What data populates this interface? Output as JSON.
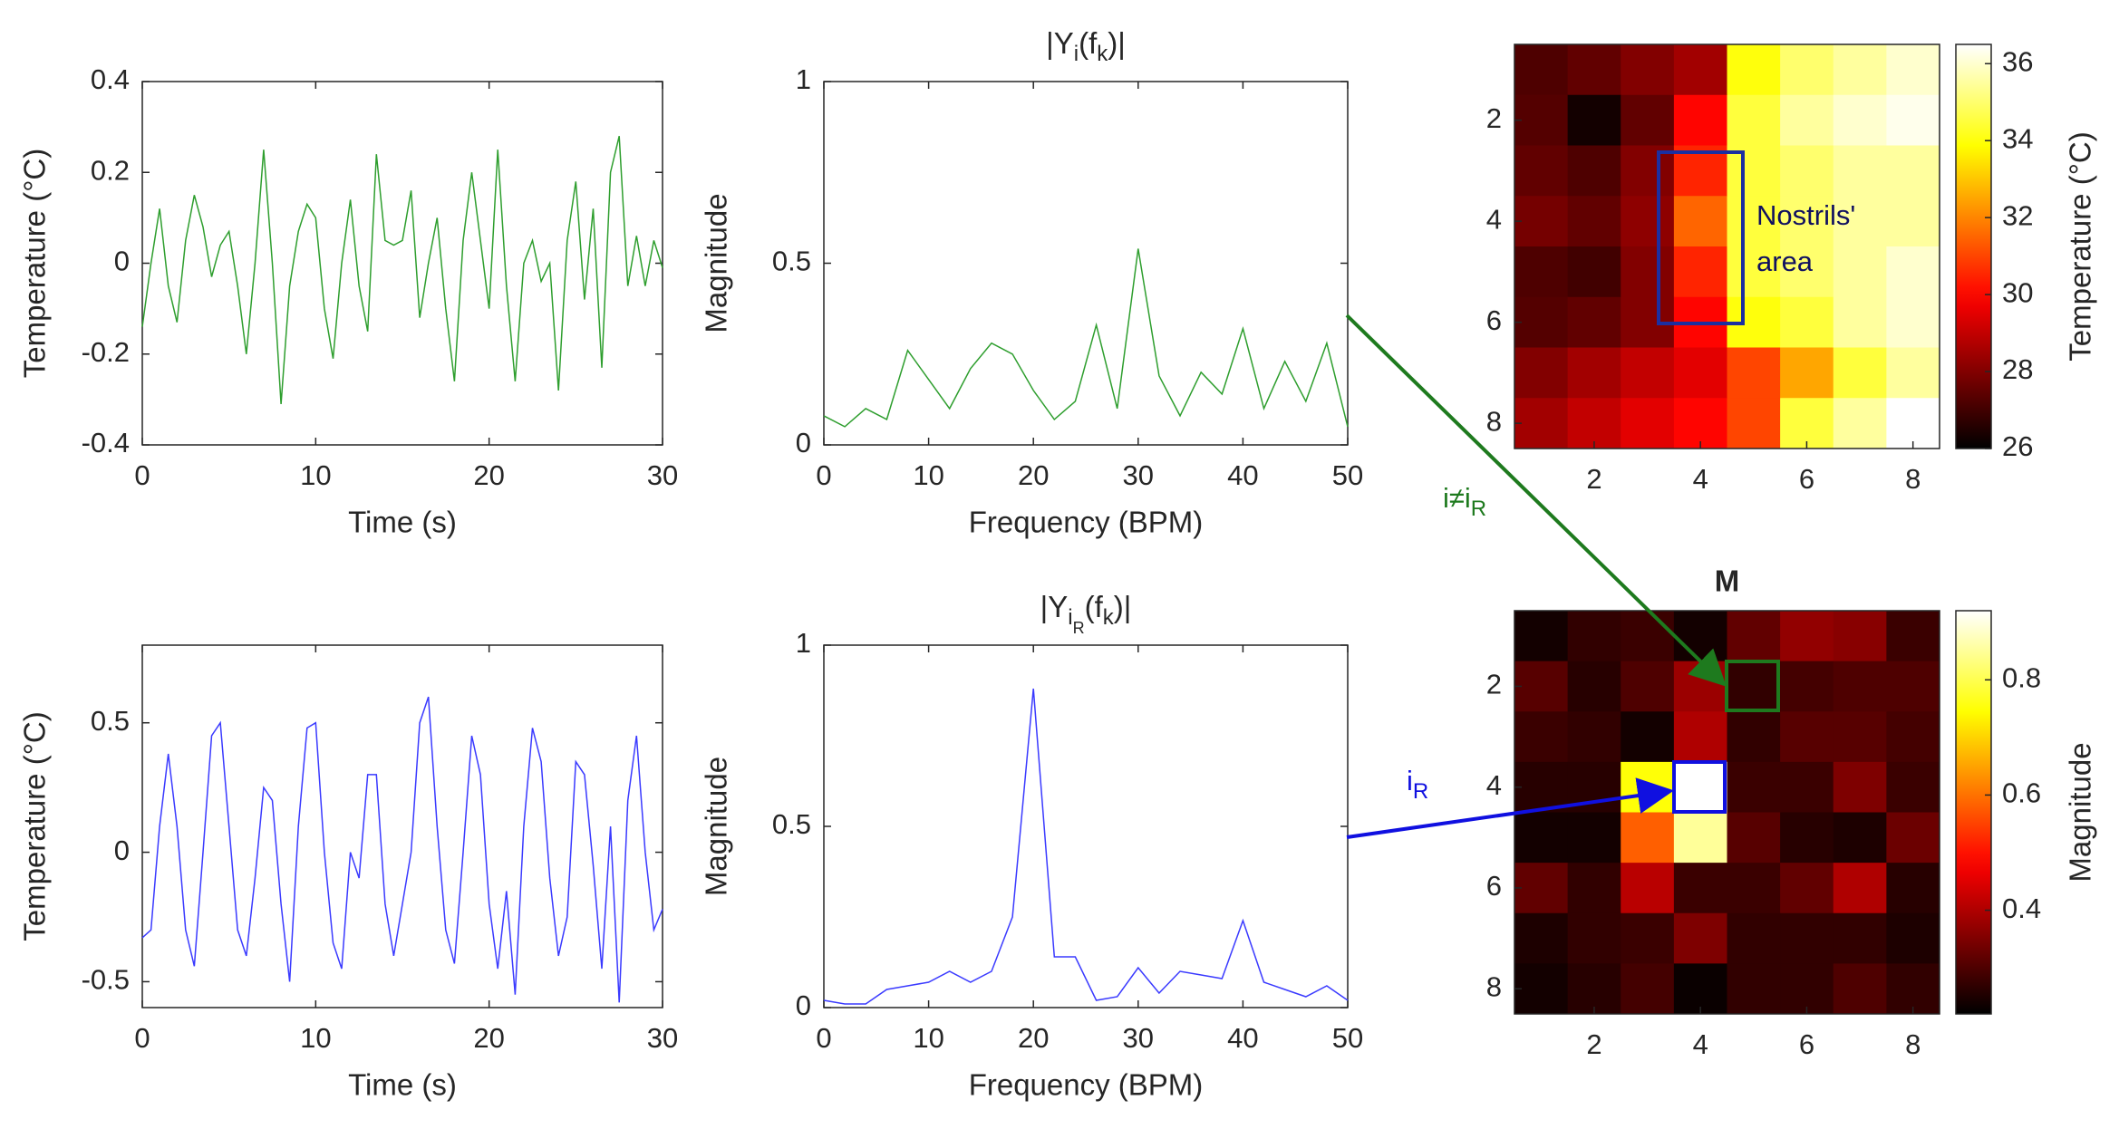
{
  "chart_data": [
    {
      "type": "line",
      "xlabel": "Time (s)",
      "ylabel": "Temperature (°C)",
      "x": [
        0,
        0.5,
        1,
        1.5,
        2,
        2.5,
        3,
        3.5,
        4,
        4.5,
        5,
        5.5,
        6,
        6.5,
        7,
        7.5,
        8,
        8.5,
        9,
        9.5,
        10,
        10.5,
        11,
        11.5,
        12,
        12.5,
        13,
        13.5,
        14,
        14.5,
        15,
        15.5,
        16,
        16.5,
        17,
        17.5,
        18,
        18.5,
        19,
        19.5,
        20,
        20.5,
        21,
        21.5,
        22,
        22.5,
        23,
        23.5,
        24,
        24.5,
        25,
        25.5,
        26,
        26.5,
        27,
        27.5,
        28,
        28.5,
        29,
        29.5,
        30
      ],
      "series": [
        {
          "color": "#2e9e2e",
          "values": [
            -0.14,
            0.0,
            0.12,
            -0.05,
            -0.13,
            0.05,
            0.15,
            0.08,
            -0.03,
            0.04,
            0.07,
            -0.05,
            -0.2,
            0.0,
            0.25,
            0.0,
            -0.31,
            -0.05,
            0.07,
            0.13,
            0.1,
            -0.1,
            -0.21,
            0.0,
            0.14,
            -0.05,
            -0.15,
            0.24,
            0.05,
            0.04,
            0.05,
            0.16,
            -0.12,
            0.0,
            0.1,
            -0.1,
            -0.26,
            0.05,
            0.2,
            0.05,
            -0.1,
            0.25,
            -0.05,
            -0.26,
            0.0,
            0.05,
            -0.04,
            0.0,
            -0.28,
            0.05,
            0.18,
            -0.08,
            0.12,
            -0.23,
            0.2,
            0.28,
            -0.05,
            0.06,
            -0.05,
            0.05,
            -0.01
          ]
        }
      ],
      "xlim": [
        0,
        30
      ],
      "xticks": [
        0,
        10,
        20,
        30
      ],
      "ylim": [
        -0.4,
        0.4
      ],
      "yticks": [
        -0.4,
        -0.2,
        0,
        0.2,
        0.4
      ]
    },
    {
      "type": "line",
      "title": [
        "|Y",
        "i",
        "(f",
        "k",
        ")|"
      ],
      "xlabel": "Frequency (BPM)",
      "ylabel": "Magnitude",
      "x": [
        0,
        2,
        4,
        6,
        8,
        10,
        12,
        14,
        16,
        18,
        20,
        22,
        24,
        26,
        28,
        30,
        32,
        34,
        36,
        38,
        40,
        42,
        44,
        46,
        48,
        50
      ],
      "series": [
        {
          "color": "#2e9e2e",
          "values": [
            0.08,
            0.05,
            0.1,
            0.07,
            0.26,
            0.18,
            0.1,
            0.21,
            0.28,
            0.25,
            0.15,
            0.07,
            0.12,
            0.33,
            0.1,
            0.54,
            0.19,
            0.08,
            0.2,
            0.14,
            0.32,
            0.1,
            0.23,
            0.12,
            0.28,
            0.05
          ]
        }
      ],
      "xlim": [
        0,
        50
      ],
      "xticks": [
        0,
        10,
        20,
        30,
        40,
        50
      ],
      "ylim": [
        0,
        1
      ],
      "yticks": [
        0,
        0.5,
        1
      ]
    },
    {
      "type": "line",
      "xlabel": "Time (s)",
      "ylabel": "Temperature (°C)",
      "x": [
        0,
        0.5,
        1,
        1.5,
        2,
        2.5,
        3,
        3.5,
        4,
        4.5,
        5,
        5.5,
        6,
        6.5,
        7,
        7.5,
        8,
        8.5,
        9,
        9.5,
        10,
        10.5,
        11,
        11.5,
        12,
        12.5,
        13,
        13.5,
        14,
        14.5,
        15,
        15.5,
        16,
        16.5,
        17,
        17.5,
        18,
        18.5,
        19,
        19.5,
        20,
        20.5,
        21,
        21.5,
        22,
        22.5,
        23,
        23.5,
        24,
        24.5,
        25,
        25.5,
        26,
        26.5,
        27,
        27.5,
        28,
        28.5,
        29,
        29.5,
        30
      ],
      "series": [
        {
          "color": "#3a3aff",
          "values": [
            -0.33,
            -0.3,
            0.1,
            0.38,
            0.1,
            -0.3,
            -0.44,
            0.0,
            0.45,
            0.5,
            0.1,
            -0.3,
            -0.4,
            -0.1,
            0.25,
            0.2,
            -0.2,
            -0.5,
            0.1,
            0.48,
            0.5,
            0.0,
            -0.35,
            -0.45,
            0.0,
            -0.1,
            0.3,
            0.3,
            -0.2,
            -0.4,
            -0.2,
            0.0,
            0.5,
            0.6,
            0.1,
            -0.3,
            -0.43,
            0.0,
            0.45,
            0.3,
            -0.2,
            -0.45,
            -0.15,
            -0.55,
            0.1,
            0.48,
            0.35,
            -0.1,
            -0.4,
            -0.25,
            0.35,
            0.3,
            -0.05,
            -0.45,
            0.1,
            -0.58,
            0.2,
            0.45,
            0.0,
            -0.3,
            -0.22
          ]
        }
      ],
      "xlim": [
        0,
        30
      ],
      "xticks": [
        0,
        10,
        20,
        30
      ],
      "ylim": [
        -0.6,
        0.8
      ],
      "yticks": [
        -0.5,
        0,
        0.5
      ]
    },
    {
      "type": "line",
      "title": [
        "|Y",
        "i",
        "R",
        "(f",
        "k",
        ")|"
      ],
      "xlabel": "Frequency (BPM)",
      "ylabel": "Magnitude",
      "x": [
        0,
        2,
        4,
        6,
        8,
        10,
        12,
        14,
        16,
        18,
        20,
        22,
        24,
        26,
        28,
        30,
        32,
        34,
        36,
        38,
        40,
        42,
        44,
        46,
        48,
        50
      ],
      "series": [
        {
          "color": "#3a3aff",
          "values": [
            0.02,
            0.01,
            0.01,
            0.05,
            0.06,
            0.07,
            0.1,
            0.07,
            0.1,
            0.25,
            0.88,
            0.14,
            0.14,
            0.02,
            0.03,
            0.11,
            0.04,
            0.1,
            0.09,
            0.08,
            0.24,
            0.07,
            0.05,
            0.03,
            0.06,
            0.02
          ]
        }
      ],
      "xlim": [
        0,
        50
      ],
      "xticks": [
        0,
        10,
        20,
        30,
        40,
        50
      ],
      "ylim": [
        0,
        1
      ],
      "yticks": [
        0,
        0.5,
        1
      ]
    },
    {
      "type": "heatmap",
      "colormap": "hot",
      "y_reversed": true,
      "xlim": [
        0.5,
        8.5
      ],
      "ylim": [
        0.5,
        8.5
      ],
      "xticks": [
        2,
        4,
        6,
        8
      ],
      "yticks": [
        2,
        4,
        6,
        8
      ],
      "values": [
        [
          27.2,
          27.5,
          28,
          28.5,
          34,
          35,
          35.5,
          36
        ],
        [
          27.3,
          26.3,
          27.5,
          30,
          34.5,
          35.5,
          36,
          36.3
        ],
        [
          27.5,
          27.2,
          28,
          30.5,
          34.5,
          35,
          35.5,
          35.5
        ],
        [
          27.8,
          27.5,
          28.2,
          31.5,
          34.5,
          35,
          35.5,
          35.5
        ],
        [
          27.2,
          27,
          28,
          30.5,
          34.5,
          35,
          35.5,
          36
        ],
        [
          27.3,
          27.5,
          28,
          30,
          34,
          34.5,
          35.5,
          36
        ],
        [
          28,
          28.5,
          29,
          29.5,
          31,
          32.5,
          34.5,
          35.5
        ],
        [
          28.5,
          29,
          29.5,
          30,
          31,
          34.5,
          35.5,
          36.5
        ]
      ],
      "colorbar": {
        "label": "Temperature (°C)",
        "clim": [
          26,
          36.5
        ],
        "ticks": [
          26,
          28,
          30,
          32,
          34,
          36
        ]
      }
    },
    {
      "type": "heatmap",
      "title": "M",
      "colormap": "hot",
      "y_reversed": true,
      "xlim": [
        0.5,
        8.5
      ],
      "ylim": [
        0.5,
        8.5
      ],
      "xticks": [
        2,
        4,
        6,
        8
      ],
      "yticks": [
        2,
        4,
        6,
        8
      ],
      "values": [
        [
          0.24,
          0.27,
          0.28,
          0.24,
          0.32,
          0.37,
          0.36,
          0.28
        ],
        [
          0.31,
          0.26,
          0.3,
          0.38,
          0.27,
          0.29,
          0.3,
          0.3
        ],
        [
          0.28,
          0.27,
          0.24,
          0.4,
          0.27,
          0.31,
          0.31,
          0.29
        ],
        [
          0.26,
          0.26,
          0.75,
          0.92,
          0.28,
          0.28,
          0.35,
          0.28
        ],
        [
          0.24,
          0.24,
          0.58,
          0.85,
          0.31,
          0.26,
          0.25,
          0.33
        ],
        [
          0.32,
          0.27,
          0.41,
          0.28,
          0.28,
          0.32,
          0.4,
          0.26
        ],
        [
          0.25,
          0.27,
          0.28,
          0.35,
          0.27,
          0.27,
          0.27,
          0.25
        ],
        [
          0.24,
          0.26,
          0.29,
          0.23,
          0.27,
          0.27,
          0.3,
          0.27
        ]
      ],
      "colorbar": {
        "label": "Magnitude",
        "clim": [
          0.22,
          0.92
        ],
        "ticks": [
          0.4,
          0.6,
          0.8
        ]
      }
    }
  ],
  "annotations": {
    "nostrils": [
      "Nostrils'",
      "area"
    ],
    "other_pixel": [
      "i≠i",
      "R"
    ],
    "resp_pixel": [
      "i",
      "R"
    ]
  }
}
